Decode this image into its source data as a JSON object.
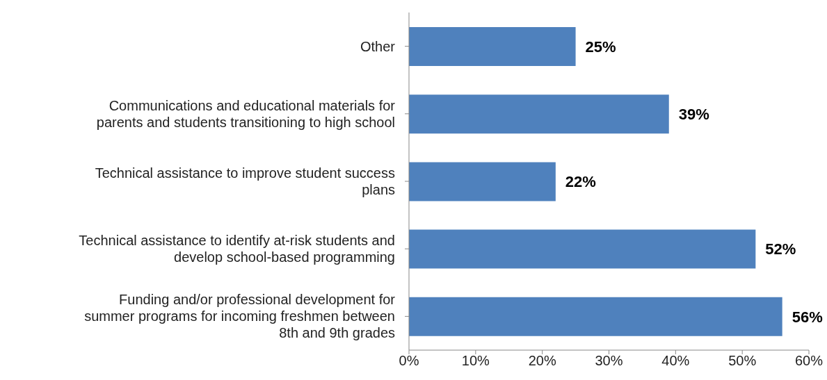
{
  "chart_data": {
    "type": "bar",
    "orientation": "horizontal",
    "categories": [
      "Other",
      "Communications and educational materials for\nparents and students transitioning to high school",
      "Technical assistance to improve student success\nplans",
      "Technical assistance to identify at-risk students and\ndevelop school-based programming",
      "Funding and/or professional development for\nsummer programs for incoming freshmen between\n8th and 9th grades"
    ],
    "values": [
      25,
      39,
      22,
      52,
      56
    ],
    "value_labels": [
      "25%",
      "39%",
      "22%",
      "52%",
      "56%"
    ],
    "color": "#4f81bd",
    "xlim": [
      0,
      60
    ],
    "xticks": [
      {
        "value": 0,
        "label": "0%"
      },
      {
        "value": 10,
        "label": "10%"
      },
      {
        "value": 20,
        "label": "20%"
      },
      {
        "value": 30,
        "label": "30%"
      },
      {
        "value": 40,
        "label": "40%"
      },
      {
        "value": 50,
        "label": "50%"
      },
      {
        "value": 60,
        "label": "60%"
      }
    ],
    "grid": false,
    "legend": false
  }
}
